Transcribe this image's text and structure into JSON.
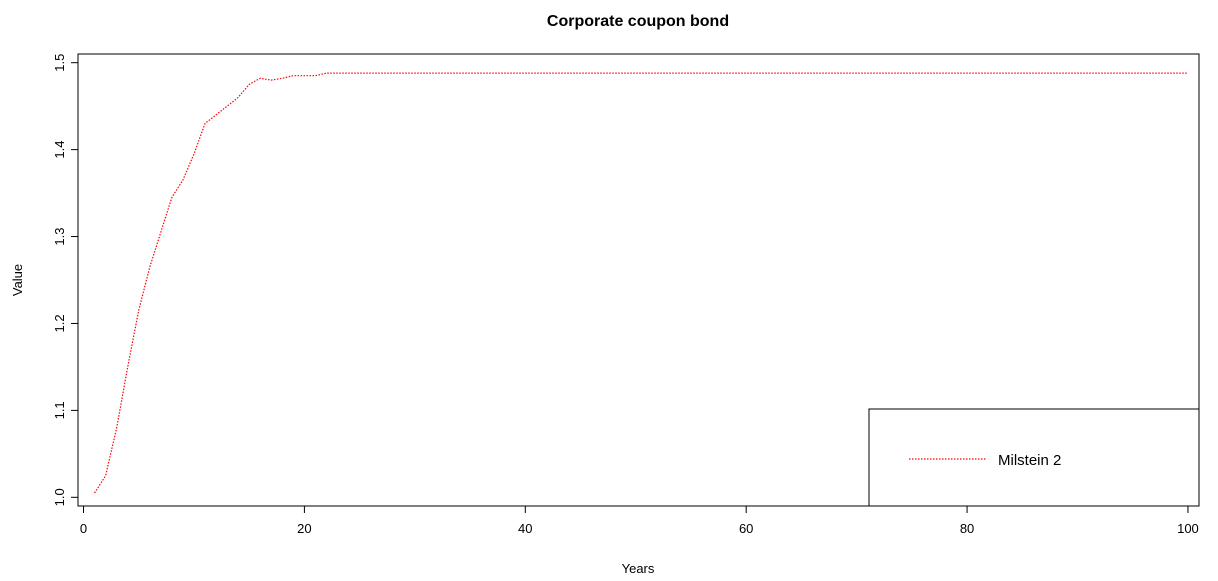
{
  "chart_data": {
    "type": "line",
    "title": "Corporate coupon bond",
    "xlabel": "Years",
    "ylabel": "Value",
    "xlim": [
      -0.5,
      101
    ],
    "ylim": [
      0.99,
      1.51
    ],
    "xticks": [
      0,
      20,
      40,
      60,
      80,
      100
    ],
    "yticks": [
      1.0,
      1.1,
      1.2,
      1.3,
      1.4,
      1.5
    ],
    "xtick_labels": [
      "0",
      "20",
      "40",
      "60",
      "80",
      "100"
    ],
    "ytick_labels": [
      "1.0",
      "1.1",
      "1.2",
      "1.3",
      "1.4",
      "1.5"
    ],
    "grid": false,
    "legend_position": "bottom-right",
    "series": [
      {
        "name": "Milstein 2",
        "color": "#ff0000",
        "line_style": "dotted",
        "x": [
          1,
          2,
          3,
          4,
          5,
          6,
          7,
          8,
          9,
          10,
          11,
          12,
          13,
          14,
          15,
          16,
          17,
          18,
          19,
          20,
          21,
          22,
          100
        ],
        "y": [
          1.005,
          1.025,
          1.08,
          1.15,
          1.215,
          1.265,
          1.305,
          1.345,
          1.365,
          1.395,
          1.43,
          1.44,
          1.45,
          1.46,
          1.475,
          1.482,
          1.48,
          1.482,
          1.485,
          1.485,
          1.485,
          1.488,
          1.488
        ]
      }
    ]
  }
}
